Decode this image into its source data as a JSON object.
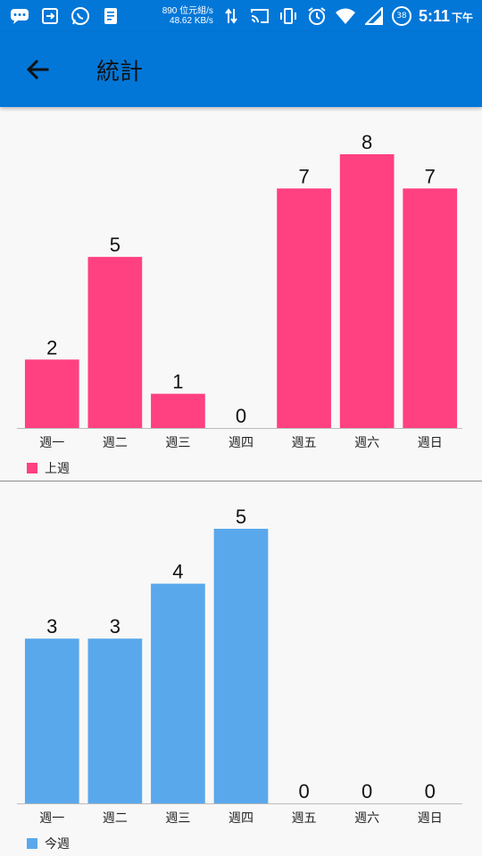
{
  "status_bar": {
    "net_speed_line1": "890 位元組/s",
    "net_speed_line2": "48.62 KB/s",
    "battery_level": "38",
    "time": "5:11",
    "ampm": "下午",
    "icons": [
      "chat-icon",
      "screen-share-icon",
      "whatsapp-icon",
      "document-icon",
      "data-arrows-icon",
      "cast-icon",
      "vibrate-icon",
      "alarm-icon",
      "wifi-icon",
      "signal-icon",
      "battery-icon"
    ]
  },
  "app_bar": {
    "title": "統計",
    "back_icon": "arrow-back-icon"
  },
  "colors": {
    "app_bar": "#0277d8",
    "last_week": "#ff4081",
    "this_week": "#5aa8ec"
  },
  "chart_data": [
    {
      "type": "bar",
      "categories": [
        "週一",
        "週二",
        "週三",
        "週四",
        "週五",
        "週六",
        "週日"
      ],
      "series": [
        {
          "name": "上週",
          "values": [
            2,
            5,
            1,
            0,
            7,
            8,
            7
          ]
        }
      ],
      "ylim": [
        0,
        8
      ],
      "legend": "bottom-left",
      "grid": false
    },
    {
      "type": "bar",
      "categories": [
        "週一",
        "週二",
        "週三",
        "週四",
        "週五",
        "週六",
        "週日"
      ],
      "series": [
        {
          "name": "今週",
          "values": [
            3,
            3,
            4,
            5,
            0,
            0,
            0
          ]
        }
      ],
      "ylim": [
        0,
        5
      ],
      "legend": "bottom-left",
      "grid": false
    }
  ]
}
